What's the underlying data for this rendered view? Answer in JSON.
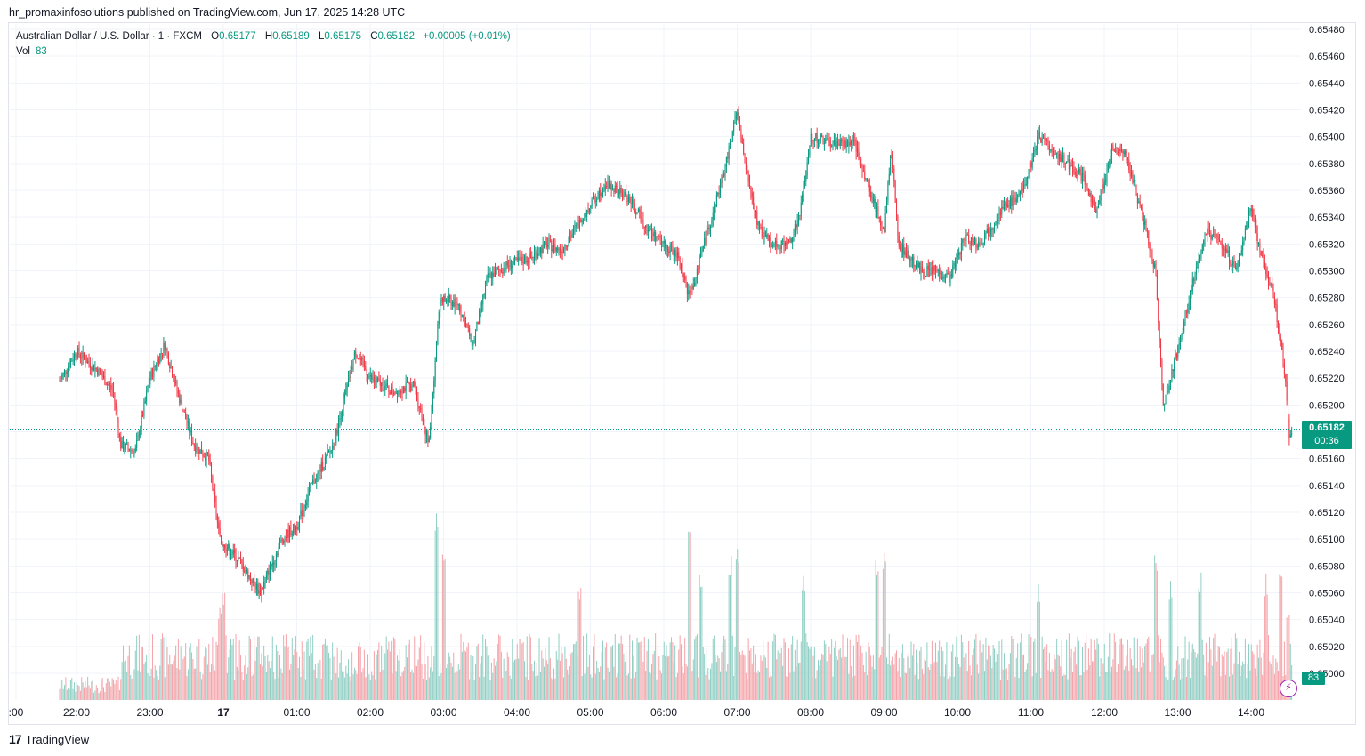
{
  "header": {
    "published": "hr_promaxinfosolutions published on TradingView.com, Jun 17, 2025 14:28 UTC"
  },
  "legend": {
    "symbol": "Australian Dollar / U.S. Dollar · 1 · FXCM",
    "o_label": "O",
    "o_value": "0.65177",
    "h_label": "H",
    "h_value": "0.65189",
    "l_label": "L",
    "l_value": "0.65175",
    "c_label": "C",
    "c_value": "0.65182",
    "change": "+0.00005 (+0.01%)",
    "vol_label": "Vol",
    "vol_value": "83"
  },
  "price_tag": {
    "price": "0.65182",
    "countdown": "00:36"
  },
  "vol_tag": "83",
  "footer": {
    "logo": "17",
    "brand": "TradingView"
  },
  "colors": {
    "up": "#089981",
    "down": "#f23645",
    "up_vol": "#8fcfc4",
    "down_vol": "#f5a3a9",
    "grid": "#f0f3fa"
  },
  "icons": {
    "bolt": "lightning-bolt-icon"
  },
  "chart_data": {
    "type": "candlestick",
    "title": "Australian Dollar / U.S. Dollar · 1 · FXCM",
    "y_ticks": [
      "0.65480",
      "0.65460",
      "0.65440",
      "0.65420",
      "0.65400",
      "0.65380",
      "0.65360",
      "0.65340",
      "0.65320",
      "0.65300",
      "0.65280",
      "0.65260",
      "0.65240",
      "0.65220",
      "0.65200",
      "0.65180",
      "0.65160",
      "0.65140",
      "0.65120",
      "0.65100",
      "0.65080",
      "0.65060",
      "0.65040",
      "0.65020",
      "0.65000"
    ],
    "ylim": [
      0.65,
      0.6548
    ],
    "x_ticks": [
      ":00",
      "22:00",
      "23:00",
      "17",
      "01:00",
      "02:00",
      "03:00",
      "04:00",
      "05:00",
      "06:00",
      "07:00",
      "08:00",
      "09:00",
      "10:00",
      "11:00",
      "12:00",
      "13:00",
      "14:00"
    ],
    "last_price": 0.65182,
    "price_path": [
      [
        21.77,
        0.65218
      ],
      [
        22.0,
        0.6524
      ],
      [
        22.3,
        0.65225
      ],
      [
        22.5,
        0.6521
      ],
      [
        22.6,
        0.6517
      ],
      [
        22.8,
        0.65165
      ],
      [
        23.0,
        0.6522
      ],
      [
        23.2,
        0.65245
      ],
      [
        23.4,
        0.65205
      ],
      [
        23.6,
        0.6517
      ],
      [
        23.8,
        0.6516
      ],
      [
        23.95,
        0.651
      ],
      [
        24.2,
        0.65085
      ],
      [
        24.5,
        0.6506
      ],
      [
        24.8,
        0.651
      ],
      [
        25.0,
        0.6511
      ],
      [
        25.2,
        0.6514
      ],
      [
        25.5,
        0.6517
      ],
      [
        25.8,
        0.6524
      ],
      [
        26.0,
        0.6522
      ],
      [
        26.3,
        0.6521
      ],
      [
        26.6,
        0.65215
      ],
      [
        26.8,
        0.6517
      ],
      [
        26.95,
        0.6528
      ],
      [
        27.2,
        0.65275
      ],
      [
        27.4,
        0.65245
      ],
      [
        27.6,
        0.65295
      ],
      [
        27.9,
        0.65305
      ],
      [
        28.2,
        0.6531
      ],
      [
        28.4,
        0.6532
      ],
      [
        28.6,
        0.65315
      ],
      [
        28.9,
        0.6534
      ],
      [
        29.2,
        0.65365
      ],
      [
        29.5,
        0.65355
      ],
      [
        29.8,
        0.6533
      ],
      [
        30.0,
        0.6532
      ],
      [
        30.2,
        0.6531
      ],
      [
        30.35,
        0.6528
      ],
      [
        30.5,
        0.6531
      ],
      [
        30.7,
        0.6535
      ],
      [
        30.85,
        0.6538
      ],
      [
        31.0,
        0.6542
      ],
      [
        31.1,
        0.6538
      ],
      [
        31.3,
        0.6533
      ],
      [
        31.5,
        0.6532
      ],
      [
        31.7,
        0.6532
      ],
      [
        31.85,
        0.6534
      ],
      [
        32.0,
        0.654
      ],
      [
        32.3,
        0.65395
      ],
      [
        32.6,
        0.65395
      ],
      [
        32.8,
        0.6536
      ],
      [
        33.0,
        0.6533
      ],
      [
        33.1,
        0.6539
      ],
      [
        33.2,
        0.6532
      ],
      [
        33.5,
        0.653
      ],
      [
        33.7,
        0.653
      ],
      [
        33.9,
        0.65295
      ],
      [
        34.1,
        0.65325
      ],
      [
        34.3,
        0.6532
      ],
      [
        34.6,
        0.65345
      ],
      [
        34.9,
        0.6536
      ],
      [
        35.1,
        0.654
      ],
      [
        35.4,
        0.65385
      ],
      [
        35.7,
        0.6537
      ],
      [
        35.9,
        0.65345
      ],
      [
        36.1,
        0.6539
      ],
      [
        36.3,
        0.65385
      ],
      [
        36.5,
        0.65345
      ],
      [
        36.7,
        0.653
      ],
      [
        36.8,
        0.652
      ],
      [
        37.0,
        0.6524
      ],
      [
        37.2,
        0.6529
      ],
      [
        37.4,
        0.6533
      ],
      [
        37.6,
        0.6532
      ],
      [
        37.8,
        0.653
      ],
      [
        38.0,
        0.6535
      ],
      [
        38.1,
        0.6532
      ],
      [
        38.2,
        0.653
      ],
      [
        38.3,
        0.65285
      ],
      [
        38.45,
        0.6523
      ],
      [
        38.52,
        0.65175
      ],
      [
        38.56,
        0.65182
      ]
    ],
    "volume_spikes": [
      [
        23.95,
        60
      ],
      [
        24.0,
        70
      ],
      [
        26.9,
        120
      ],
      [
        27.0,
        95
      ],
      [
        28.85,
        65
      ],
      [
        30.35,
        115
      ],
      [
        30.5,
        75
      ],
      [
        30.9,
        90
      ],
      [
        31.0,
        95
      ],
      [
        31.9,
        75
      ],
      [
        32.9,
        85
      ],
      [
        33.0,
        95
      ],
      [
        35.1,
        70
      ],
      [
        36.7,
        95
      ],
      [
        36.9,
        75
      ],
      [
        37.3,
        80
      ],
      [
        38.2,
        75
      ],
      [
        38.4,
        80
      ],
      [
        38.5,
        60
      ]
    ]
  }
}
